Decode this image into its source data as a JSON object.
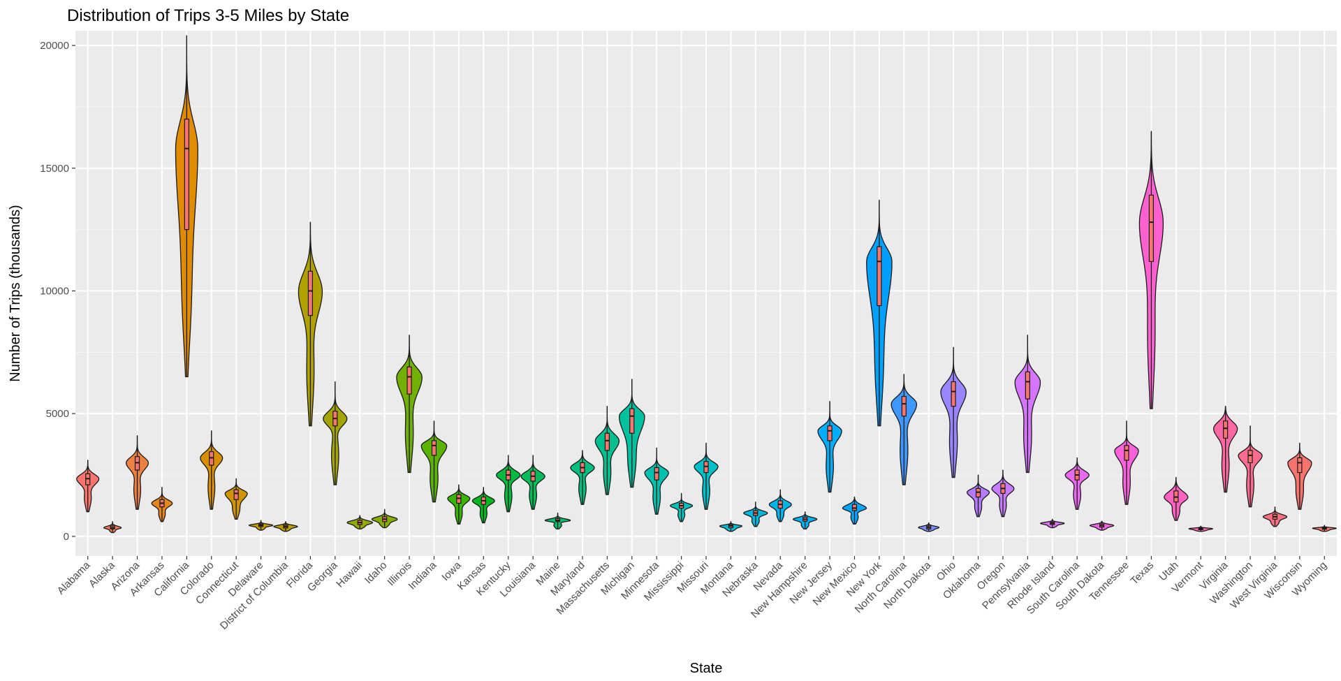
{
  "chart_data": {
    "type": "violin",
    "title": "Distribution of Trips 3-5 Miles by State",
    "xlabel": "State",
    "ylabel": "Number of Trips (thousands)",
    "ylim": [
      -800,
      20600
    ],
    "yticks": [
      0,
      5000,
      10000,
      15000,
      20000
    ],
    "grid": true,
    "legend": "none",
    "categories": [
      "Alabama",
      "Alaska",
      "Arizona",
      "Arkansas",
      "California",
      "Colorado",
      "Connecticut",
      "Delaware",
      "District of Columbia",
      "Florida",
      "Georgia",
      "Hawaii",
      "Idaho",
      "Illinois",
      "Indiana",
      "Iowa",
      "Kansas",
      "Kentucky",
      "Louisiana",
      "Maine",
      "Maryland",
      "Massachusetts",
      "Michigan",
      "Minnesota",
      "Mississippi",
      "Missouri",
      "Montana",
      "Nebraska",
      "Nevada",
      "New Hampshire",
      "New Jersey",
      "New Mexico",
      "New York",
      "North Carolina",
      "North Dakota",
      "Ohio",
      "Oklahoma",
      "Oregon",
      "Pennsylvania",
      "Rhode Island",
      "South Carolina",
      "South Dakota",
      "Tennessee",
      "Texas",
      "Utah",
      "Vermont",
      "Virginia",
      "Washington",
      "West Virginia",
      "Wisconsin",
      "Wyoming"
    ],
    "colors": [
      "#F8766D",
      "#F37B59",
      "#ED8141",
      "#E7861B",
      "#E08B00",
      "#D89000",
      "#CF9400",
      "#C59900",
      "#BB9D00",
      "#B0A100",
      "#A3A500",
      "#95A900",
      "#85AD00",
      "#72B000",
      "#5BB300",
      "#39B600",
      "#00B81F",
      "#00BA42",
      "#00BC59",
      "#00BD6D",
      "#00BF7F",
      "#00C08F",
      "#00C19F",
      "#00C1AD",
      "#00C0BB",
      "#00BFC7",
      "#00BDD3",
      "#00BADE",
      "#00B6E8",
      "#00B2F3",
      "#00ADFA",
      "#00A7FF",
      "#00A0FF",
      "#3F98FF",
      "#7B8EFF",
      "#9B84FF",
      "#B47AFF",
      "#C77CFF",
      "#D575FE",
      "#E16FF7",
      "#EB69F0",
      "#F363E6",
      "#FA62DB",
      "#FE61CF",
      "#FF62C1",
      "#FF65B2",
      "#FF67A3",
      "#FF6C92",
      "#FB6F80",
      "#F7736E",
      "#F5766A"
    ],
    "series": [
      {
        "name": "Alabama",
        "min": 1000,
        "q1": 2100,
        "median": 2350,
        "q3": 2550,
        "max": 3100,
        "width": 0.28
      },
      {
        "name": "Alaska",
        "min": 150,
        "q1": 300,
        "median": 350,
        "q3": 420,
        "max": 600,
        "width": 0.22
      },
      {
        "name": "Arizona",
        "min": 1100,
        "q1": 2700,
        "median": 3000,
        "q3": 3250,
        "max": 4100,
        "width": 0.28
      },
      {
        "name": "Arkansas",
        "min": 600,
        "q1": 1200,
        "median": 1350,
        "q3": 1500,
        "max": 2000,
        "width": 0.26
      },
      {
        "name": "California",
        "min": 6500,
        "q1": 12500,
        "median": 15800,
        "q3": 17000,
        "max": 20400,
        "width": 0.28
      },
      {
        "name": "Colorado",
        "min": 1100,
        "q1": 2900,
        "median": 3200,
        "q3": 3450,
        "max": 4300,
        "width": 0.28
      },
      {
        "name": "Connecticut",
        "min": 700,
        "q1": 1500,
        "median": 1750,
        "q3": 1900,
        "max": 2350,
        "width": 0.28
      },
      {
        "name": "Delaware",
        "min": 250,
        "q1": 400,
        "median": 450,
        "q3": 500,
        "max": 650,
        "width": 0.3
      },
      {
        "name": "District of Columbia",
        "min": 200,
        "q1": 340,
        "median": 400,
        "q3": 460,
        "max": 600,
        "width": 0.3
      },
      {
        "name": "Florida",
        "min": 4500,
        "q1": 9000,
        "median": 10000,
        "q3": 10800,
        "max": 12800,
        "width": 0.3
      },
      {
        "name": "Georgia",
        "min": 2100,
        "q1": 4500,
        "median": 4800,
        "q3": 5100,
        "max": 6300,
        "width": 0.3
      },
      {
        "name": "Hawaii",
        "min": 300,
        "q1": 480,
        "median": 560,
        "q3": 650,
        "max": 850,
        "width": 0.32
      },
      {
        "name": "Idaho",
        "min": 350,
        "q1": 600,
        "median": 700,
        "q3": 800,
        "max": 1100,
        "width": 0.32
      },
      {
        "name": "Illinois",
        "min": 2600,
        "q1": 5800,
        "median": 6500,
        "q3": 6900,
        "max": 8200,
        "width": 0.32
      },
      {
        "name": "Indiana",
        "min": 1400,
        "q1": 3300,
        "median": 3700,
        "q3": 3900,
        "max": 4700,
        "width": 0.32
      },
      {
        "name": "Iowa",
        "min": 500,
        "q1": 1350,
        "median": 1550,
        "q3": 1700,
        "max": 2100,
        "width": 0.28
      },
      {
        "name": "Kansas",
        "min": 550,
        "q1": 1300,
        "median": 1450,
        "q3": 1600,
        "max": 2000,
        "width": 0.28
      },
      {
        "name": "Kentucky",
        "min": 1000,
        "q1": 2300,
        "median": 2500,
        "q3": 2700,
        "max": 3300,
        "width": 0.3
      },
      {
        "name": "Louisiana",
        "min": 1100,
        "q1": 2250,
        "median": 2450,
        "q3": 2650,
        "max": 3300,
        "width": 0.3
      },
      {
        "name": "Maine",
        "min": 300,
        "q1": 600,
        "median": 650,
        "q3": 720,
        "max": 950,
        "width": 0.32
      },
      {
        "name": "Maryland",
        "min": 1300,
        "q1": 2600,
        "median": 2800,
        "q3": 3000,
        "max": 3500,
        "width": 0.3
      },
      {
        "name": "Massachusetts",
        "min": 1700,
        "q1": 3500,
        "median": 3900,
        "q3": 4200,
        "max": 5300,
        "width": 0.3
      },
      {
        "name": "Michigan",
        "min": 2000,
        "q1": 4200,
        "median": 4900,
        "q3": 5200,
        "max": 6400,
        "width": 0.32
      },
      {
        "name": "Minnesota",
        "min": 900,
        "q1": 2300,
        "median": 2600,
        "q3": 2800,
        "max": 3600,
        "width": 0.3
      },
      {
        "name": "Mississippi",
        "min": 600,
        "q1": 1150,
        "median": 1250,
        "q3": 1350,
        "max": 1750,
        "width": 0.28
      },
      {
        "name": "Missouri",
        "min": 1100,
        "q1": 2600,
        "median": 2850,
        "q3": 3050,
        "max": 3800,
        "width": 0.3
      },
      {
        "name": "Montana",
        "min": 200,
        "q1": 350,
        "median": 420,
        "q3": 470,
        "max": 600,
        "width": 0.28
      },
      {
        "name": "Nebraska",
        "min": 400,
        "q1": 850,
        "median": 950,
        "q3": 1050,
        "max": 1400,
        "width": 0.3
      },
      {
        "name": "Nevada",
        "min": 600,
        "q1": 1150,
        "median": 1300,
        "q3": 1450,
        "max": 1900,
        "width": 0.28
      },
      {
        "name": "New Hampshire",
        "min": 300,
        "q1": 620,
        "median": 700,
        "q3": 780,
        "max": 1000,
        "width": 0.3
      },
      {
        "name": "New Jersey",
        "min": 1800,
        "q1": 3900,
        "median": 4300,
        "q3": 4500,
        "max": 5500,
        "width": 0.3
      },
      {
        "name": "New Mexico",
        "min": 500,
        "q1": 1050,
        "median": 1150,
        "q3": 1300,
        "max": 1600,
        "width": 0.3
      },
      {
        "name": "New York",
        "min": 4500,
        "q1": 9400,
        "median": 11200,
        "q3": 11800,
        "max": 13700,
        "width": 0.32
      },
      {
        "name": "North Carolina",
        "min": 2100,
        "q1": 4900,
        "median": 5400,
        "q3": 5700,
        "max": 6600,
        "width": 0.32
      },
      {
        "name": "North Dakota",
        "min": 200,
        "q1": 300,
        "median": 360,
        "q3": 420,
        "max": 550,
        "width": 0.26
      },
      {
        "name": "Ohio",
        "min": 2400,
        "q1": 5300,
        "median": 5900,
        "q3": 6300,
        "max": 7700,
        "width": 0.32
      },
      {
        "name": "Oklahoma",
        "min": 800,
        "q1": 1600,
        "median": 1800,
        "q3": 1950,
        "max": 2500,
        "width": 0.28
      },
      {
        "name": "Oregon",
        "min": 800,
        "q1": 1750,
        "median": 1950,
        "q3": 2150,
        "max": 2700,
        "width": 0.28
      },
      {
        "name": "Pennsylvania",
        "min": 2600,
        "q1": 5600,
        "median": 6300,
        "q3": 6700,
        "max": 8200,
        "width": 0.32
      },
      {
        "name": "Rhode Island",
        "min": 350,
        "q1": 480,
        "median": 530,
        "q3": 580,
        "max": 700,
        "width": 0.3
      },
      {
        "name": "South Carolina",
        "min": 1100,
        "q1": 2300,
        "median": 2500,
        "q3": 2700,
        "max": 3200,
        "width": 0.3
      },
      {
        "name": "South Dakota",
        "min": 250,
        "q1": 380,
        "median": 440,
        "q3": 500,
        "max": 620,
        "width": 0.3
      },
      {
        "name": "Tennessee",
        "min": 1300,
        "q1": 3100,
        "median": 3500,
        "q3": 3700,
        "max": 4700,
        "width": 0.3
      },
      {
        "name": "Texas",
        "min": 5200,
        "q1": 11200,
        "median": 12800,
        "q3": 13900,
        "max": 16500,
        "width": 0.3
      },
      {
        "name": "Utah",
        "min": 650,
        "q1": 1400,
        "median": 1600,
        "q3": 1850,
        "max": 2400,
        "width": 0.3
      },
      {
        "name": "Vermont",
        "min": 200,
        "q1": 270,
        "median": 310,
        "q3": 340,
        "max": 420,
        "width": 0.3
      },
      {
        "name": "Virginia",
        "min": 1800,
        "q1": 4000,
        "median": 4400,
        "q3": 4700,
        "max": 5300,
        "width": 0.3
      },
      {
        "name": "Washington",
        "min": 1200,
        "q1": 3000,
        "median": 3300,
        "q3": 3500,
        "max": 4500,
        "width": 0.3
      },
      {
        "name": "West Virginia",
        "min": 400,
        "q1": 700,
        "median": 800,
        "q3": 900,
        "max": 1200,
        "width": 0.3
      },
      {
        "name": "Wisconsin",
        "min": 1100,
        "q1": 2600,
        "median": 3000,
        "q3": 3200,
        "max": 3800,
        "width": 0.3
      },
      {
        "name": "Wyoming",
        "min": 200,
        "q1": 290,
        "median": 330,
        "q3": 360,
        "max": 450,
        "width": 0.3
      }
    ]
  }
}
